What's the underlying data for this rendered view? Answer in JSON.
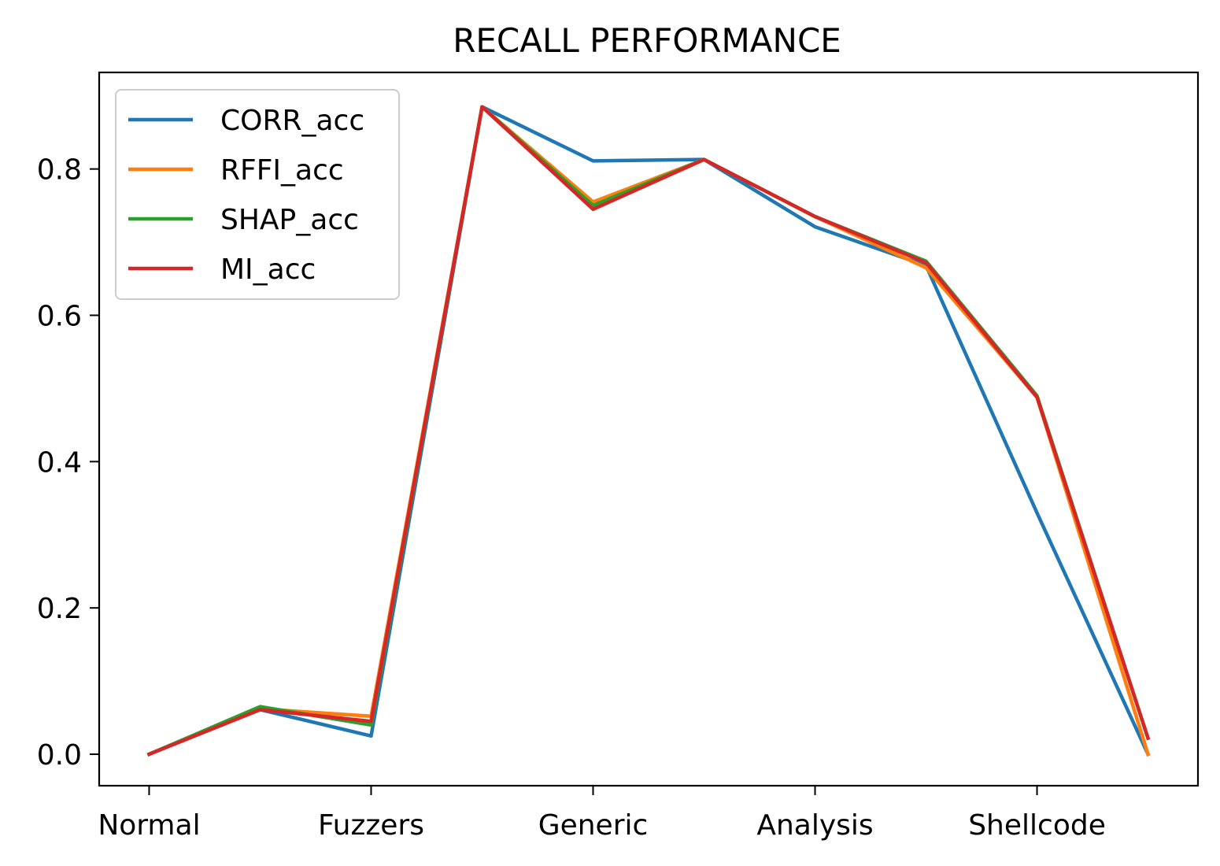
{
  "chart_data": {
    "type": "line",
    "title": "RECALL PERFORMANCE",
    "xlabel": "",
    "ylabel": "",
    "x_tick_labels": [
      "Normal",
      "Fuzzers",
      "Generic",
      "Analysis",
      "Shellcode"
    ],
    "x_tick_indices": [
      0,
      2,
      4,
      6,
      8
    ],
    "num_points": 10,
    "xlim": [
      -0.45,
      9.45
    ],
    "ylim": [
      -0.043,
      0.932
    ],
    "y_ticks": [
      0.0,
      0.2,
      0.4,
      0.6,
      0.8
    ],
    "y_tick_labels": [
      "0.0",
      "0.2",
      "0.4",
      "0.6",
      "0.8"
    ],
    "grid": false,
    "legend_position": "top-left",
    "series": [
      {
        "name": "CORR_acc",
        "color": "#1f77b4",
        "values": [
          0.0,
          0.061,
          0.025,
          0.885,
          0.811,
          0.813,
          0.721,
          0.668,
          0.33,
          0.0
        ]
      },
      {
        "name": "RFFI_acc",
        "color": "#ff7f0e",
        "values": [
          0.0,
          0.062,
          0.052,
          0.885,
          0.755,
          0.813,
          0.735,
          0.665,
          0.488,
          0.0
        ]
      },
      {
        "name": "SHAP_acc",
        "color": "#2ca02c",
        "values": [
          0.0,
          0.065,
          0.04,
          0.885,
          0.75,
          0.813,
          0.735,
          0.674,
          0.49,
          0.022
        ]
      },
      {
        "name": "MI_acc",
        "color": "#d62728",
        "values": [
          0.0,
          0.061,
          0.045,
          0.885,
          0.745,
          0.813,
          0.735,
          0.672,
          0.488,
          0.022
        ]
      }
    ]
  }
}
